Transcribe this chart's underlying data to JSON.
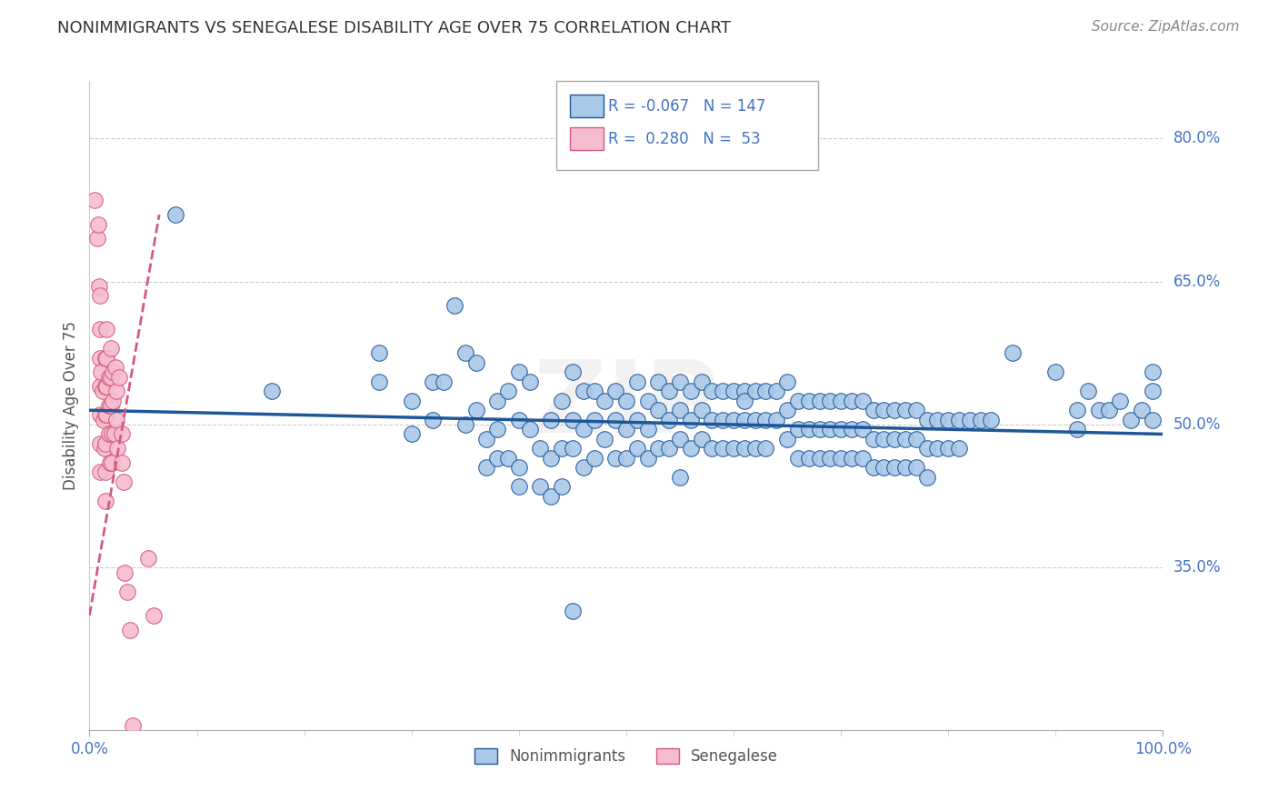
{
  "title": "NONIMMIGRANTS VS SENEGALESE DISABILITY AGE OVER 75 CORRELATION CHART",
  "source": "Source: ZipAtlas.com",
  "ylabel": "Disability Age Over 75",
  "xlim": [
    0.0,
    1.0
  ],
  "ylim": [
    0.18,
    0.86
  ],
  "y_ticks": [
    0.35,
    0.5,
    0.65,
    0.8
  ],
  "y_tick_labels": [
    "35.0%",
    "50.0%",
    "65.0%",
    "80.0%"
  ],
  "x_tick_labels": [
    "0.0%",
    "100.0%"
  ],
  "legend_r_blue": "-0.067",
  "legend_n_blue": "147",
  "legend_r_pink": "0.280",
  "legend_n_pink": "53",
  "watermark": "ZIP",
  "blue_color": "#aac8e8",
  "pink_color": "#f5bcd0",
  "line_blue": "#1e5799",
  "line_pink": "#d45a7a",
  "grid_color": "#cccccc",
  "title_color": "#333333",
  "axis_label_color": "#555555",
  "tick_label_color": "#4472c4",
  "blue_trend_x": [
    0.0,
    1.0
  ],
  "blue_trend_y": [
    0.515,
    0.49
  ],
  "pink_trend_x": [
    0.0,
    0.065
  ],
  "pink_trend_y": [
    0.3,
    0.72
  ],
  "blue_scatter": [
    [
      0.08,
      0.72
    ],
    [
      0.17,
      0.535
    ],
    [
      0.27,
      0.575
    ],
    [
      0.27,
      0.545
    ],
    [
      0.3,
      0.525
    ],
    [
      0.3,
      0.49
    ],
    [
      0.32,
      0.545
    ],
    [
      0.32,
      0.505
    ],
    [
      0.33,
      0.545
    ],
    [
      0.34,
      0.625
    ],
    [
      0.35,
      0.575
    ],
    [
      0.35,
      0.5
    ],
    [
      0.36,
      0.565
    ],
    [
      0.36,
      0.515
    ],
    [
      0.37,
      0.485
    ],
    [
      0.37,
      0.455
    ],
    [
      0.38,
      0.525
    ],
    [
      0.38,
      0.495
    ],
    [
      0.38,
      0.465
    ],
    [
      0.39,
      0.535
    ],
    [
      0.39,
      0.465
    ],
    [
      0.4,
      0.555
    ],
    [
      0.4,
      0.505
    ],
    [
      0.4,
      0.455
    ],
    [
      0.4,
      0.435
    ],
    [
      0.41,
      0.545
    ],
    [
      0.41,
      0.495
    ],
    [
      0.42,
      0.475
    ],
    [
      0.42,
      0.435
    ],
    [
      0.43,
      0.505
    ],
    [
      0.43,
      0.465
    ],
    [
      0.43,
      0.425
    ],
    [
      0.44,
      0.525
    ],
    [
      0.44,
      0.475
    ],
    [
      0.44,
      0.435
    ],
    [
      0.45,
      0.555
    ],
    [
      0.45,
      0.505
    ],
    [
      0.45,
      0.475
    ],
    [
      0.46,
      0.535
    ],
    [
      0.46,
      0.495
    ],
    [
      0.46,
      0.455
    ],
    [
      0.47,
      0.535
    ],
    [
      0.47,
      0.505
    ],
    [
      0.47,
      0.465
    ],
    [
      0.48,
      0.525
    ],
    [
      0.48,
      0.485
    ],
    [
      0.49,
      0.535
    ],
    [
      0.49,
      0.505
    ],
    [
      0.49,
      0.465
    ],
    [
      0.5,
      0.525
    ],
    [
      0.5,
      0.495
    ],
    [
      0.5,
      0.465
    ],
    [
      0.51,
      0.545
    ],
    [
      0.51,
      0.505
    ],
    [
      0.51,
      0.475
    ],
    [
      0.52,
      0.525
    ],
    [
      0.52,
      0.495
    ],
    [
      0.52,
      0.465
    ],
    [
      0.53,
      0.545
    ],
    [
      0.53,
      0.515
    ],
    [
      0.53,
      0.475
    ],
    [
      0.54,
      0.535
    ],
    [
      0.54,
      0.505
    ],
    [
      0.54,
      0.475
    ],
    [
      0.55,
      0.545
    ],
    [
      0.55,
      0.515
    ],
    [
      0.55,
      0.485
    ],
    [
      0.55,
      0.445
    ],
    [
      0.56,
      0.535
    ],
    [
      0.56,
      0.505
    ],
    [
      0.56,
      0.475
    ],
    [
      0.57,
      0.545
    ],
    [
      0.57,
      0.515
    ],
    [
      0.57,
      0.485
    ],
    [
      0.58,
      0.535
    ],
    [
      0.58,
      0.505
    ],
    [
      0.58,
      0.475
    ],
    [
      0.59,
      0.535
    ],
    [
      0.59,
      0.505
    ],
    [
      0.59,
      0.475
    ],
    [
      0.6,
      0.535
    ],
    [
      0.6,
      0.505
    ],
    [
      0.6,
      0.475
    ],
    [
      0.61,
      0.535
    ],
    [
      0.61,
      0.505
    ],
    [
      0.61,
      0.475
    ],
    [
      0.61,
      0.525
    ],
    [
      0.62,
      0.535
    ],
    [
      0.62,
      0.505
    ],
    [
      0.62,
      0.475
    ],
    [
      0.63,
      0.535
    ],
    [
      0.63,
      0.505
    ],
    [
      0.63,
      0.475
    ],
    [
      0.64,
      0.535
    ],
    [
      0.64,
      0.505
    ],
    [
      0.65,
      0.545
    ],
    [
      0.65,
      0.515
    ],
    [
      0.65,
      0.485
    ],
    [
      0.66,
      0.525
    ],
    [
      0.66,
      0.495
    ],
    [
      0.66,
      0.465
    ],
    [
      0.67,
      0.525
    ],
    [
      0.67,
      0.495
    ],
    [
      0.67,
      0.465
    ],
    [
      0.68,
      0.525
    ],
    [
      0.68,
      0.495
    ],
    [
      0.68,
      0.465
    ],
    [
      0.69,
      0.525
    ],
    [
      0.69,
      0.495
    ],
    [
      0.69,
      0.465
    ],
    [
      0.7,
      0.525
    ],
    [
      0.7,
      0.495
    ],
    [
      0.7,
      0.465
    ],
    [
      0.71,
      0.525
    ],
    [
      0.71,
      0.495
    ],
    [
      0.71,
      0.465
    ],
    [
      0.72,
      0.525
    ],
    [
      0.72,
      0.495
    ],
    [
      0.72,
      0.465
    ],
    [
      0.73,
      0.515
    ],
    [
      0.73,
      0.485
    ],
    [
      0.73,
      0.455
    ],
    [
      0.74,
      0.515
    ],
    [
      0.74,
      0.485
    ],
    [
      0.74,
      0.455
    ],
    [
      0.75,
      0.515
    ],
    [
      0.75,
      0.485
    ],
    [
      0.75,
      0.455
    ],
    [
      0.76,
      0.515
    ],
    [
      0.76,
      0.485
    ],
    [
      0.76,
      0.455
    ],
    [
      0.77,
      0.515
    ],
    [
      0.77,
      0.485
    ],
    [
      0.77,
      0.455
    ],
    [
      0.78,
      0.505
    ],
    [
      0.78,
      0.475
    ],
    [
      0.78,
      0.445
    ],
    [
      0.79,
      0.505
    ],
    [
      0.79,
      0.475
    ],
    [
      0.8,
      0.505
    ],
    [
      0.8,
      0.475
    ],
    [
      0.81,
      0.505
    ],
    [
      0.81,
      0.475
    ],
    [
      0.82,
      0.505
    ],
    [
      0.83,
      0.505
    ],
    [
      0.84,
      0.505
    ],
    [
      0.86,
      0.575
    ],
    [
      0.9,
      0.555
    ],
    [
      0.92,
      0.515
    ],
    [
      0.92,
      0.495
    ],
    [
      0.93,
      0.535
    ],
    [
      0.94,
      0.515
    ],
    [
      0.95,
      0.515
    ],
    [
      0.96,
      0.525
    ],
    [
      0.97,
      0.505
    ],
    [
      0.98,
      0.515
    ],
    [
      0.99,
      0.535
    ],
    [
      0.99,
      0.505
    ],
    [
      0.99,
      0.555
    ],
    [
      0.45,
      0.305
    ]
  ],
  "pink_scatter": [
    [
      0.005,
      0.735
    ],
    [
      0.007,
      0.695
    ],
    [
      0.008,
      0.71
    ],
    [
      0.009,
      0.645
    ],
    [
      0.01,
      0.635
    ],
    [
      0.01,
      0.6
    ],
    [
      0.01,
      0.57
    ],
    [
      0.01,
      0.54
    ],
    [
      0.01,
      0.51
    ],
    [
      0.01,
      0.48
    ],
    [
      0.01,
      0.45
    ],
    [
      0.011,
      0.555
    ],
    [
      0.012,
      0.535
    ],
    [
      0.013,
      0.505
    ],
    [
      0.014,
      0.475
    ],
    [
      0.015,
      0.57
    ],
    [
      0.015,
      0.54
    ],
    [
      0.015,
      0.51
    ],
    [
      0.015,
      0.48
    ],
    [
      0.015,
      0.45
    ],
    [
      0.015,
      0.42
    ],
    [
      0.016,
      0.6
    ],
    [
      0.016,
      0.57
    ],
    [
      0.016,
      0.54
    ],
    [
      0.016,
      0.51
    ],
    [
      0.018,
      0.55
    ],
    [
      0.018,
      0.52
    ],
    [
      0.018,
      0.49
    ],
    [
      0.019,
      0.46
    ],
    [
      0.02,
      0.58
    ],
    [
      0.02,
      0.55
    ],
    [
      0.02,
      0.52
    ],
    [
      0.021,
      0.49
    ],
    [
      0.021,
      0.46
    ],
    [
      0.022,
      0.555
    ],
    [
      0.022,
      0.525
    ],
    [
      0.023,
      0.49
    ],
    [
      0.024,
      0.56
    ],
    [
      0.025,
      0.535
    ],
    [
      0.025,
      0.505
    ],
    [
      0.026,
      0.475
    ],
    [
      0.028,
      0.55
    ],
    [
      0.03,
      0.49
    ],
    [
      0.03,
      0.46
    ],
    [
      0.032,
      0.44
    ],
    [
      0.033,
      0.345
    ],
    [
      0.035,
      0.325
    ],
    [
      0.038,
      0.285
    ],
    [
      0.04,
      0.185
    ],
    [
      0.055,
      0.36
    ],
    [
      0.06,
      0.3
    ]
  ]
}
